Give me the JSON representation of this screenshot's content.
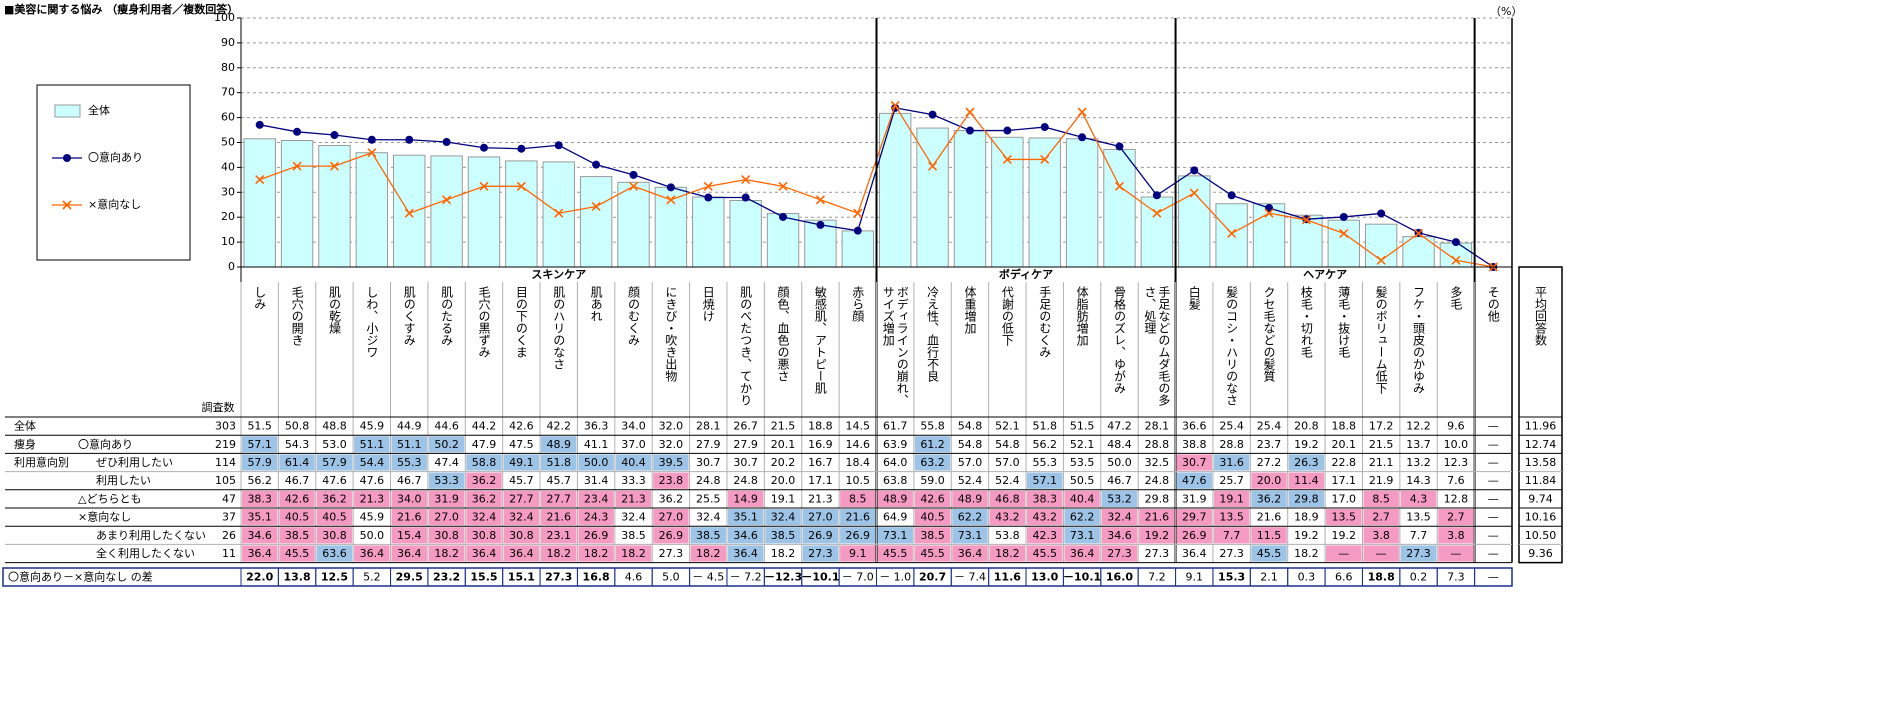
{
  "chart_data": {
    "type": "combo",
    "title": "■美容に関する悩み （痩身利用者／複数回答）",
    "unit": "（%）",
    "categories": [
      "しみ",
      "毛穴の開き",
      "肌の乾燥",
      "しわ、小ジワ",
      "肌のくすみ",
      "肌のたるみ",
      "毛穴の黒ずみ",
      "目の下のくま",
      "肌のハリのなさ",
      "肌あれ",
      "顔のむくみ",
      "にきび・吹き出物",
      "日焼け",
      "肌のべたつき、てかり",
      "顔色、血色の悪さ",
      "敏感肌、アトピー肌",
      "赤ら顔",
      "ボディラインの崩れ、サイズ増加",
      "冷え性、血行不良",
      "体重増加",
      "代謝の低下",
      "手足のむくみ",
      "体脂肪増加",
      "骨格のズレ、ゆがみ",
      "手足などのムダ毛の多さ、処理",
      "白髪",
      "髪のコシ・ハリのなさ",
      "クセ毛などの髪質",
      "枝毛・切れ毛",
      "薄毛・抜け毛",
      "髪のボリューム低下",
      "フケ・頭皮のかゆみ",
      "多毛",
      "その他"
    ],
    "groups": [
      {
        "label": "スキンケア",
        "span": 17
      },
      {
        "label": "ボディケア",
        "span": 8
      },
      {
        "label": "ヘアケア",
        "span": 8
      }
    ],
    "series": [
      {
        "name": "全体",
        "kind": "bar",
        "color": "#ccffff",
        "border": "#9a9a9a",
        "values": [
          51.5,
          50.8,
          48.8,
          45.9,
          44.9,
          44.6,
          44.2,
          42.6,
          42.2,
          36.3,
          34.0,
          32.0,
          28.1,
          26.7,
          21.5,
          18.8,
          14.5,
          61.7,
          55.8,
          54.8,
          52.1,
          51.8,
          51.5,
          47.2,
          28.1,
          36.6,
          25.4,
          25.4,
          20.8,
          18.8,
          17.2,
          12.2,
          9.6,
          null
        ],
        "value_labels": [
          "51.5",
          "50.8",
          "48.8",
          "45.9",
          "44.9",
          "44.6",
          "44.2",
          "42.6",
          "42.2",
          "36.3",
          "34.0",
          "32.0",
          "28.1",
          "26.7",
          "21.5",
          "18.8",
          "14.5",
          "61.7",
          "55.8",
          "54.8",
          "52.1",
          "51.8",
          "51.5",
          "47.2",
          "28.1",
          "36.6",
          "25.4",
          "25.4",
          "20.8",
          "18.8",
          "17.2",
          "12.2",
          "9.6",
          "—"
        ]
      },
      {
        "name": "〇意向あり",
        "kind": "line",
        "marker": "circle",
        "color": "#000080",
        "values": [
          57.1,
          54.3,
          53.0,
          51.1,
          51.1,
          50.2,
          47.9,
          47.5,
          48.9,
          41.1,
          37.0,
          32.0,
          27.9,
          27.9,
          20.1,
          16.9,
          14.6,
          63.9,
          61.2,
          54.8,
          54.8,
          56.2,
          52.1,
          48.4,
          28.8,
          38.8,
          28.8,
          23.7,
          19.2,
          20.1,
          21.5,
          13.7,
          10.0,
          0
        ],
        "value_labels": [
          "57.1",
          "54.3",
          "53.0",
          "51.1",
          "51.1",
          "50.2",
          "47.9",
          "47.5",
          "48.9",
          "41.1",
          "37.0",
          "32.0",
          "27.9",
          "27.9",
          "20.1",
          "16.9",
          "14.6",
          "63.9",
          "61.2",
          "54.8",
          "54.8",
          "56.2",
          "52.1",
          "48.4",
          "28.8",
          "38.8",
          "28.8",
          "23.7",
          "19.2",
          "20.1",
          "21.5",
          "13.7",
          "10.0",
          "—"
        ]
      },
      {
        "name": "×意向なし",
        "kind": "line",
        "marker": "x",
        "color": "#ff6600",
        "values": [
          35.1,
          40.5,
          40.5,
          45.9,
          21.6,
          27.0,
          32.4,
          32.4,
          21.6,
          24.3,
          32.4,
          27.0,
          32.4,
          35.1,
          32.4,
          27.0,
          21.6,
          64.9,
          40.5,
          62.2,
          43.2,
          43.2,
          62.2,
          32.4,
          21.6,
          29.7,
          13.5,
          21.6,
          18.9,
          13.5,
          2.7,
          13.5,
          2.7,
          0
        ],
        "value_labels": [
          "35.1",
          "40.5",
          "40.5",
          "45.9",
          "21.6",
          "27.0",
          "32.4",
          "32.4",
          "21.6",
          "24.3",
          "32.4",
          "27.0",
          "32.4",
          "35.1",
          "32.4",
          "27.0",
          "21.6",
          "64.9",
          "40.5",
          "62.2",
          "43.2",
          "43.2",
          "62.2",
          "32.4",
          "21.6",
          "29.7",
          "13.5",
          "21.6",
          "18.9",
          "13.5",
          "2.7",
          "13.5",
          "2.7",
          "—"
        ]
      }
    ],
    "ylim": [
      0,
      100
    ],
    "yticks": [
      0,
      10,
      20,
      30,
      40,
      50,
      60,
      70,
      80,
      90,
      100
    ],
    "grid": true,
    "legend": "left"
  },
  "table": {
    "n_header": "調査数",
    "avg_header": "平均回答数",
    "segment_label": [
      "痩身",
      "利用意向別"
    ],
    "cell_styles": {
      "b": {
        "fill": "#9dc3e6"
      },
      "p": {
        "fill": "#f59ac2"
      },
      "B": {
        "weight": "bold"
      }
    },
    "rows": [
      {
        "series": 0,
        "level": 0,
        "n": "303",
        "avg": "11.96",
        "styles": [
          ".................",
          "........",
          "........",
          "."
        ]
      },
      {
        "series": 1,
        "level": 1,
        "n": "219",
        "avg": "12.74",
        "styles": [
          "b..bbb..b........",
          ".b......",
          "........",
          "."
        ]
      },
      {
        "label": "ぜひ利用したい",
        "level": 2,
        "n": "114",
        "avg": "13.58",
        "styles": [
          "bbbbb.bbbbbb.....",
          ".b......",
          "pb.b....",
          "."
        ],
        "cells": [
          "57.9",
          "61.4",
          "57.9",
          "54.4",
          "55.3",
          "47.4",
          "58.8",
          "49.1",
          "51.8",
          "50.0",
          "40.4",
          "39.5",
          "30.7",
          "30.7",
          "20.2",
          "16.7",
          "18.4",
          "64.0",
          "63.2",
          "57.0",
          "57.0",
          "55.3",
          "53.5",
          "50.0",
          "32.5",
          "30.7",
          "31.6",
          "27.2",
          "26.3",
          "22.8",
          "21.1",
          "13.2",
          "12.3",
          "—"
        ]
      },
      {
        "label": "利用したい",
        "level": 2,
        "n": "105",
        "avg": "11.84",
        "styles": [
          ".....bp....p.....",
          "....b...",
          "b.pp....",
          "."
        ],
        "cells": [
          "56.2",
          "46.7",
          "47.6",
          "47.6",
          "46.7",
          "53.3",
          "36.2",
          "45.7",
          "45.7",
          "31.4",
          "33.3",
          "23.8",
          "24.8",
          "24.8",
          "20.0",
          "17.1",
          "10.5",
          "63.8",
          "59.0",
          "52.4",
          "52.4",
          "57.1",
          "50.5",
          "46.7",
          "24.8",
          "47.6",
          "25.7",
          "20.0",
          "11.4",
          "17.1",
          "21.9",
          "14.3",
          "7.6",
          "—"
        ]
      },
      {
        "label": "△どちらとも",
        "level": 1,
        "n": "47",
        "avg": "9.74",
        "styles": [
          "ppppppppppp..p..p",
          "ppppppb.",
          ".pbb.pp.",
          "."
        ],
        "cells": [
          "38.3",
          "42.6",
          "36.2",
          "21.3",
          "34.0",
          "31.9",
          "36.2",
          "27.7",
          "27.7",
          "23.4",
          "21.3",
          "36.2",
          "25.5",
          "14.9",
          "19.1",
          "21.3",
          "8.5",
          "48.9",
          "42.6",
          "48.9",
          "46.8",
          "38.3",
          "40.4",
          "53.2",
          "29.8",
          "31.9",
          "19.1",
          "36.2",
          "29.8",
          "17.0",
          "8.5",
          "4.3",
          "12.8",
          "—"
        ]
      },
      {
        "series": 2,
        "level": 1,
        "n": "37",
        "avg": "10.16",
        "styles": [
          "ppp.pppppp.p.bbbb",
          ".pbppbpp",
          "pp..pp.p",
          "."
        ]
      },
      {
        "label": "あまり利用したくない",
        "level": 2,
        "n": "26",
        "avg": "10.50",
        "styles": [
          "ppp.pppppp.pbbbbb",
          "bpb.pbpp",
          "ppp..p.p",
          "."
        ],
        "cells": [
          "34.6",
          "38.5",
          "30.8",
          "50.0",
          "15.4",
          "30.8",
          "30.8",
          "30.8",
          "23.1",
          "26.9",
          "38.5",
          "26.9",
          "38.5",
          "34.6",
          "38.5",
          "26.9",
          "26.9",
          "73.1",
          "38.5",
          "73.1",
          "53.8",
          "42.3",
          "73.1",
          "34.6",
          "19.2",
          "26.9",
          "7.7",
          "11.5",
          "19.2",
          "19.2",
          "3.8",
          "7.7",
          "3.8",
          "—"
        ]
      },
      {
        "label": "全く利用したくない",
        "level": 2,
        "n": "11",
        "avg": "9.36",
        "styles": [
          "ppbpppppppp.pb.bp",
          "ppppppp.",
          "..b.ppbp",
          "."
        ],
        "cells": [
          "36.4",
          "45.5",
          "63.6",
          "36.4",
          "36.4",
          "18.2",
          "36.4",
          "36.4",
          "18.2",
          "18.2",
          "18.2",
          "27.3",
          "18.2",
          "36.4",
          "18.2",
          "27.3",
          "9.1",
          "45.5",
          "45.5",
          "36.4",
          "18.2",
          "45.5",
          "36.4",
          "27.3",
          "27.3",
          "36.4",
          "27.3",
          "45.5",
          "18.2",
          "—",
          "—",
          "27.3",
          "—",
          "—"
        ]
      }
    ],
    "diff_row": {
      "label": "〇意向あり－×意向なし の差",
      "styles": [
        "BBB.BBBBBB....BB.",
        ".B.BBBB.",
        ".B...B..",
        "."
      ],
      "cells": [
        "22.0",
        "13.8",
        "12.5",
        "5.2",
        "29.5",
        "23.2",
        "15.5",
        "15.1",
        "27.3",
        "16.8",
        "4.6",
        "5.0",
        "－ 4.5",
        "－ 7.2",
        "－12.3",
        "－10.1",
        "－ 7.0",
        "－ 1.0",
        "20.7",
        "－ 7.4",
        "11.6",
        "13.0",
        "－10.1",
        "16.0",
        "7.2",
        "9.1",
        "15.3",
        "2.1",
        "0.3",
        "6.6",
        "18.8",
        "0.2",
        "7.3",
        "—"
      ]
    }
  }
}
